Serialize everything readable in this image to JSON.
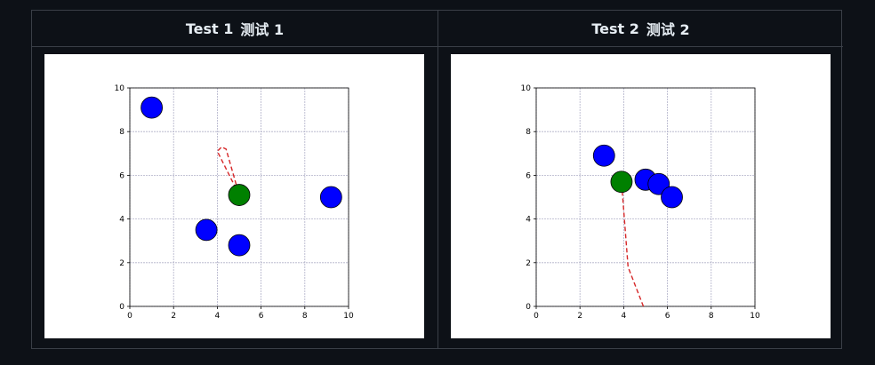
{
  "tests": [
    {
      "title": "Test 1",
      "title_cn": "测试 1",
      "chart_data": {
        "type": "scatter",
        "xlim": [
          0,
          10
        ],
        "ylim": [
          0,
          10
        ],
        "xticks": [
          0,
          2,
          4,
          6,
          8,
          10
        ],
        "yticks": [
          0,
          2,
          4,
          6,
          8,
          10
        ],
        "grid": true,
        "obstacles": [
          [
            1.0,
            9.1
          ],
          [
            9.2,
            5.0
          ],
          [
            3.5,
            3.5
          ],
          [
            5.0,
            2.8
          ]
        ],
        "agent": [
          5.0,
          5.1
        ],
        "path": [
          [
            5.0,
            5.1
          ],
          [
            4.0,
            7.1
          ],
          [
            4.2,
            7.3
          ],
          [
            4.4,
            7.2
          ],
          [
            5.0,
            5.1
          ]
        ],
        "colors": {
          "obstacle": "#0000ff",
          "agent": "#008000",
          "path": "#d62728"
        }
      }
    },
    {
      "title": "Test 2",
      "title_cn": "测试 2",
      "chart_data": {
        "type": "scatter",
        "xlim": [
          0,
          10
        ],
        "ylim": [
          0,
          10
        ],
        "xticks": [
          0,
          2,
          4,
          6,
          8,
          10
        ],
        "yticks": [
          0,
          2,
          4,
          6,
          8,
          10
        ],
        "grid": true,
        "obstacles": [
          [
            3.1,
            6.9
          ],
          [
            5.0,
            5.8
          ],
          [
            5.6,
            5.6
          ],
          [
            6.2,
            5.0
          ]
        ],
        "agent": [
          3.9,
          5.7
        ],
        "path": [
          [
            4.9,
            0.0
          ],
          [
            4.2,
            1.8
          ],
          [
            3.9,
            5.7
          ]
        ],
        "colors": {
          "obstacle": "#0000ff",
          "agent": "#008000",
          "path": "#d62728"
        }
      }
    }
  ]
}
